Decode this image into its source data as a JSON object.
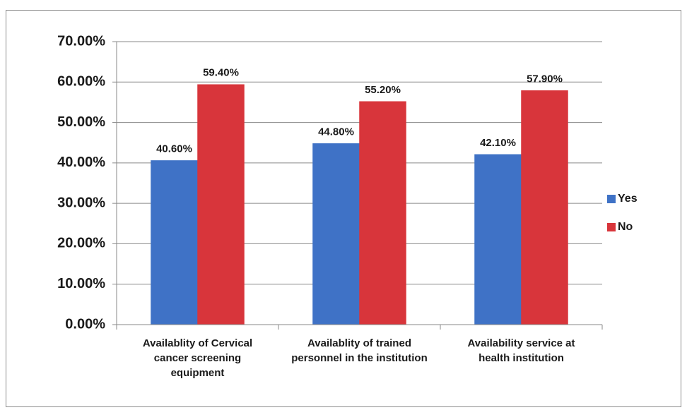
{
  "chart_data": {
    "type": "bar",
    "categories": [
      "Availablity of Cervical cancer screening equipment",
      "Availablity of trained personnel in the institution",
      "Availability service at health institution"
    ],
    "series": [
      {
        "name": "Yes",
        "color": "#3f72c6",
        "values": [
          40.6,
          44.8,
          42.1
        ],
        "value_labels": [
          "40.60%",
          "44.80%",
          "42.10%"
        ]
      },
      {
        "name": "No",
        "color": "#d8353b",
        "values": [
          59.4,
          55.2,
          57.9
        ],
        "value_labels": [
          "59.40%",
          "55.20%",
          "57.90%"
        ]
      }
    ],
    "ylim": [
      0,
      70
    ],
    "yticks": [
      {
        "value": 0,
        "label": "0.00%"
      },
      {
        "value": 10,
        "label": "10.00%"
      },
      {
        "value": 20,
        "label": "20.00%"
      },
      {
        "value": 30,
        "label": "30.00%"
      },
      {
        "value": 40,
        "label": "40.00%"
      },
      {
        "value": 50,
        "label": "50.00%"
      },
      {
        "value": 60,
        "label": "60.00%"
      },
      {
        "value": 70,
        "label": "70.00%"
      }
    ],
    "grid": true,
    "legend": "right"
  }
}
